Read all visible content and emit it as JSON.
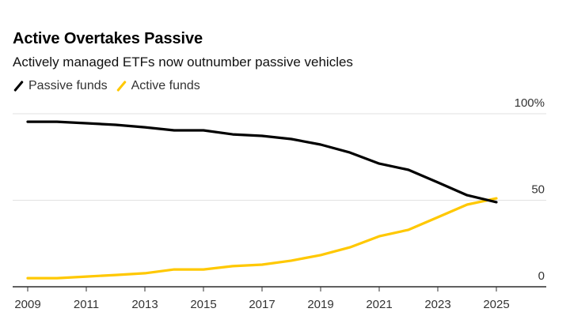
{
  "chart_data": {
    "type": "line",
    "title": "Active Overtakes Passive",
    "subtitle": "Actively managed ETFs now outnumber passive vehicles",
    "xlabel": "",
    "ylabel": "",
    "x": [
      2009,
      2010,
      2011,
      2012,
      2013,
      2014,
      2015,
      2016,
      2017,
      2018,
      2019,
      2020,
      2021,
      2022,
      2023,
      2024,
      2025
    ],
    "series": [
      {
        "name": "Passive funds",
        "color": "#000000",
        "values": [
          95.4,
          95.4,
          94.5,
          93.6,
          92.2,
          90.4,
          90.4,
          88.1,
          87.2,
          85.4,
          82.2,
          77.6,
          71.2,
          67.6,
          60.3,
          52.9,
          48.9
        ]
      },
      {
        "name": "Active funds",
        "color": "#ffc800",
        "values": [
          5.0,
          5.0,
          5.9,
          6.8,
          7.8,
          10.0,
          10.0,
          11.9,
          12.8,
          15.1,
          18.3,
          22.8,
          29.2,
          32.9,
          40.2,
          47.5,
          51.1
        ]
      }
    ],
    "xlim": [
      2009,
      2026.7
    ],
    "ylim": [
      0,
      100
    ],
    "x_ticks": [
      2009,
      2011,
      2013,
      2015,
      2017,
      2019,
      2021,
      2023,
      2025
    ],
    "x_tick_labels": [
      "2009",
      "2011",
      "2013",
      "2015",
      "2017",
      "2019",
      "2021",
      "2023",
      "2025"
    ],
    "y_ticks": [
      0,
      50,
      100
    ],
    "y_tick_labels": [
      "0",
      "50",
      "100%"
    ],
    "grid": true,
    "legend_position": "top-left"
  }
}
